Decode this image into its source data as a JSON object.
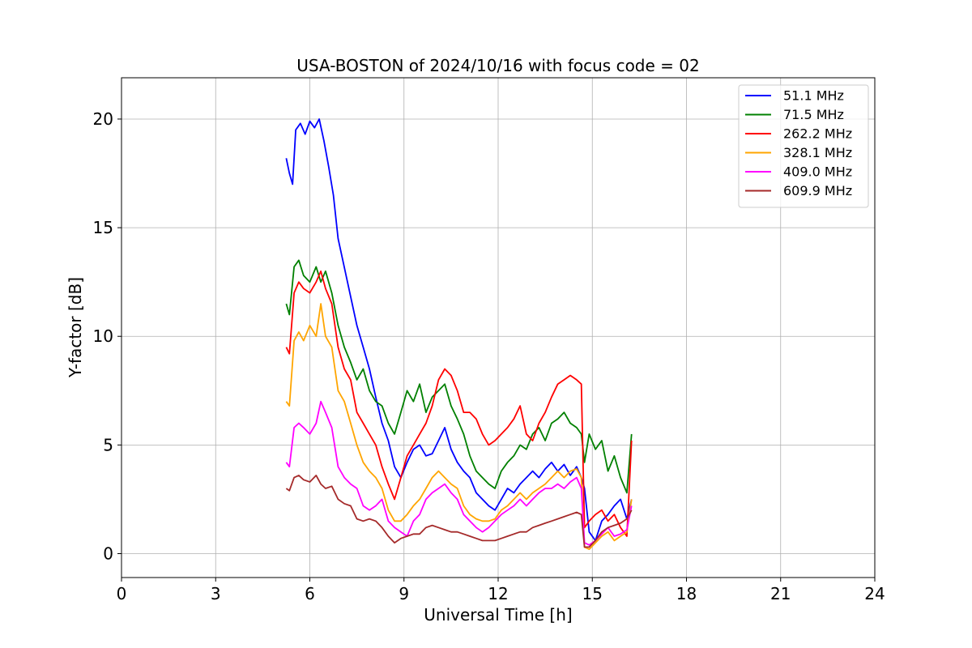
{
  "chart_data": {
    "type": "line",
    "title": "USA-BOSTON of 2024/10/16 with focus code = 02",
    "xlabel": "Universal Time [h]",
    "ylabel": "Y-factor [dB]",
    "xlim": [
      0,
      24
    ],
    "ylim": [
      -1.1,
      21.9
    ],
    "xticks": [
      0,
      3,
      6,
      9,
      12,
      15,
      18,
      21,
      24
    ],
    "yticks": [
      0,
      5,
      10,
      15,
      20
    ],
    "grid": true,
    "legend": "top-right",
    "series": [
      {
        "name": " 51.1 MHz",
        "color": "#0000ff",
        "x": [
          5.25,
          5.35,
          5.45,
          5.55,
          5.7,
          5.85,
          6.0,
          6.15,
          6.3,
          6.45,
          6.6,
          6.75,
          6.9,
          7.05,
          7.2,
          7.35,
          7.5,
          7.7,
          7.9,
          8.1,
          8.3,
          8.5,
          8.7,
          8.9,
          9.1,
          9.3,
          9.5,
          9.7,
          9.9,
          10.1,
          10.3,
          10.5,
          10.7,
          10.9,
          11.1,
          11.3,
          11.5,
          11.7,
          11.9,
          12.1,
          12.3,
          12.5,
          12.7,
          12.9,
          13.1,
          13.3,
          13.5,
          13.7,
          13.9,
          14.1,
          14.3,
          14.5,
          14.65,
          14.75,
          14.9,
          15.1,
          15.3,
          15.5,
          15.7,
          15.9,
          16.1,
          16.25
        ],
        "y": [
          18.2,
          17.5,
          17.0,
          19.5,
          19.8,
          19.3,
          19.9,
          19.6,
          20.0,
          19.0,
          17.8,
          16.5,
          14.5,
          13.5,
          12.5,
          11.5,
          10.5,
          9.5,
          8.5,
          7.2,
          6.0,
          5.2,
          4.0,
          3.5,
          4.2,
          4.8,
          5.0,
          4.5,
          4.6,
          5.2,
          5.8,
          4.8,
          4.2,
          3.8,
          3.5,
          2.8,
          2.5,
          2.2,
          2.0,
          2.5,
          3.0,
          2.8,
          3.2,
          3.5,
          3.8,
          3.5,
          3.9,
          4.2,
          3.8,
          4.1,
          3.6,
          4.0,
          3.5,
          3.0,
          1.0,
          0.6,
          1.5,
          1.8,
          2.2,
          2.5,
          1.6,
          2.5
        ]
      },
      {
        "name": " 71.5 MHz",
        "color": "#008000",
        "x": [
          5.25,
          5.35,
          5.5,
          5.65,
          5.8,
          6.0,
          6.2,
          6.35,
          6.5,
          6.7,
          6.9,
          7.1,
          7.3,
          7.5,
          7.7,
          7.9,
          8.1,
          8.3,
          8.5,
          8.7,
          8.9,
          9.1,
          9.3,
          9.5,
          9.7,
          9.9,
          10.1,
          10.3,
          10.5,
          10.7,
          10.9,
          11.1,
          11.3,
          11.5,
          11.7,
          11.9,
          12.1,
          12.3,
          12.5,
          12.7,
          12.9,
          13.1,
          13.3,
          13.5,
          13.7,
          13.9,
          14.1,
          14.3,
          14.5,
          14.65,
          14.75,
          14.9,
          15.1,
          15.3,
          15.5,
          15.7,
          15.9,
          16.1,
          16.25
        ],
        "y": [
          11.5,
          11.0,
          13.2,
          13.5,
          12.8,
          12.5,
          13.2,
          12.5,
          13.0,
          12.0,
          10.5,
          9.5,
          8.8,
          8.0,
          8.5,
          7.5,
          7.0,
          6.8,
          6.0,
          5.5,
          6.5,
          7.5,
          7.0,
          7.8,
          6.5,
          7.2,
          7.5,
          7.8,
          6.8,
          6.2,
          5.5,
          4.5,
          3.8,
          3.5,
          3.2,
          3.0,
          3.8,
          4.2,
          4.5,
          5.0,
          4.8,
          5.5,
          5.8,
          5.2,
          6.0,
          6.2,
          6.5,
          6.0,
          5.8,
          5.5,
          4.2,
          5.5,
          4.8,
          5.2,
          3.8,
          4.5,
          3.5,
          2.8,
          5.5
        ]
      },
      {
        "name": " 262.2 MHz",
        "color": "#ff0000",
        "x": [
          5.25,
          5.35,
          5.5,
          5.65,
          5.8,
          6.0,
          6.2,
          6.35,
          6.5,
          6.7,
          6.9,
          7.1,
          7.3,
          7.5,
          7.7,
          7.9,
          8.1,
          8.3,
          8.5,
          8.7,
          8.9,
          9.1,
          9.3,
          9.5,
          9.7,
          9.9,
          10.1,
          10.3,
          10.5,
          10.7,
          10.9,
          11.1,
          11.3,
          11.5,
          11.7,
          11.9,
          12.1,
          12.3,
          12.5,
          12.7,
          12.9,
          13.1,
          13.3,
          13.5,
          13.7,
          13.9,
          14.1,
          14.3,
          14.5,
          14.65,
          14.75,
          14.9,
          15.1,
          15.3,
          15.5,
          15.7,
          15.9,
          16.1,
          16.25
        ],
        "y": [
          9.5,
          9.2,
          12.0,
          12.5,
          12.2,
          12.0,
          12.5,
          13.0,
          12.2,
          11.5,
          9.5,
          8.5,
          8.0,
          6.5,
          6.0,
          5.5,
          5.0,
          4.0,
          3.2,
          2.5,
          3.5,
          4.5,
          5.0,
          5.5,
          6.0,
          6.8,
          8.0,
          8.5,
          8.2,
          7.5,
          6.5,
          6.5,
          6.2,
          5.5,
          5.0,
          5.2,
          5.5,
          5.8,
          6.2,
          6.8,
          5.5,
          5.2,
          6.0,
          6.5,
          7.2,
          7.8,
          8.0,
          8.2,
          8.0,
          7.8,
          1.2,
          1.5,
          1.8,
          2.0,
          1.5,
          1.8,
          1.2,
          0.8,
          5.2
        ]
      },
      {
        "name": " 328.1 MHz",
        "color": "#ffa500",
        "x": [
          5.25,
          5.35,
          5.5,
          5.65,
          5.8,
          6.0,
          6.2,
          6.35,
          6.5,
          6.7,
          6.9,
          7.1,
          7.3,
          7.5,
          7.7,
          7.9,
          8.1,
          8.3,
          8.5,
          8.7,
          8.9,
          9.1,
          9.3,
          9.5,
          9.7,
          9.9,
          10.1,
          10.3,
          10.5,
          10.7,
          10.9,
          11.1,
          11.3,
          11.5,
          11.7,
          11.9,
          12.1,
          12.3,
          12.5,
          12.7,
          12.9,
          13.1,
          13.3,
          13.5,
          13.7,
          13.9,
          14.1,
          14.3,
          14.5,
          14.65,
          14.75,
          14.9,
          15.1,
          15.3,
          15.5,
          15.7,
          15.9,
          16.1,
          16.25
        ],
        "y": [
          7.0,
          6.8,
          9.8,
          10.2,
          9.8,
          10.5,
          10.0,
          11.5,
          10.0,
          9.5,
          7.5,
          7.0,
          6.0,
          5.0,
          4.2,
          3.8,
          3.5,
          3.0,
          2.0,
          1.5,
          1.5,
          1.8,
          2.2,
          2.5,
          3.0,
          3.5,
          3.8,
          3.5,
          3.2,
          3.0,
          2.2,
          1.8,
          1.6,
          1.5,
          1.5,
          1.6,
          2.0,
          2.2,
          2.5,
          2.8,
          2.5,
          2.8,
          3.0,
          3.2,
          3.5,
          3.8,
          3.5,
          3.8,
          3.9,
          3.5,
          0.3,
          0.2,
          0.5,
          0.8,
          1.0,
          0.6,
          0.8,
          1.0,
          2.5
        ]
      },
      {
        "name": " 409.0 MHz",
        "color": "#ff00ff",
        "x": [
          5.25,
          5.35,
          5.5,
          5.65,
          5.8,
          6.0,
          6.2,
          6.35,
          6.5,
          6.7,
          6.9,
          7.1,
          7.3,
          7.5,
          7.7,
          7.9,
          8.1,
          8.3,
          8.5,
          8.7,
          8.9,
          9.1,
          9.3,
          9.5,
          9.7,
          9.9,
          10.1,
          10.3,
          10.5,
          10.7,
          10.9,
          11.1,
          11.3,
          11.5,
          11.7,
          11.9,
          12.1,
          12.3,
          12.5,
          12.7,
          12.9,
          13.1,
          13.3,
          13.5,
          13.7,
          13.9,
          14.1,
          14.3,
          14.5,
          14.65,
          14.75,
          14.9,
          15.1,
          15.3,
          15.5,
          15.7,
          15.9,
          16.1,
          16.25
        ],
        "y": [
          4.2,
          4.0,
          5.8,
          6.0,
          5.8,
          5.5,
          6.0,
          7.0,
          6.5,
          5.8,
          4.0,
          3.5,
          3.2,
          3.0,
          2.2,
          2.0,
          2.2,
          2.5,
          1.5,
          1.2,
          1.0,
          0.8,
          1.5,
          1.8,
          2.5,
          2.8,
          3.0,
          3.2,
          2.8,
          2.5,
          1.8,
          1.5,
          1.2,
          1.0,
          1.2,
          1.5,
          1.8,
          2.0,
          2.2,
          2.5,
          2.2,
          2.5,
          2.8,
          3.0,
          3.0,
          3.2,
          3.0,
          3.3,
          3.5,
          3.0,
          0.5,
          0.4,
          0.6,
          0.9,
          1.2,
          0.8,
          0.9,
          1.1,
          2.2
        ]
      },
      {
        "name": " 609.9 MHz",
        "color": "#a52a2a",
        "x": [
          5.25,
          5.35,
          5.5,
          5.65,
          5.8,
          6.0,
          6.2,
          6.35,
          6.5,
          6.7,
          6.9,
          7.1,
          7.3,
          7.5,
          7.7,
          7.9,
          8.1,
          8.3,
          8.5,
          8.7,
          8.9,
          9.1,
          9.3,
          9.5,
          9.7,
          9.9,
          10.1,
          10.3,
          10.5,
          10.7,
          10.9,
          11.1,
          11.3,
          11.5,
          11.7,
          11.9,
          12.1,
          12.3,
          12.5,
          12.7,
          12.9,
          13.1,
          13.3,
          13.5,
          13.7,
          13.9,
          14.1,
          14.3,
          14.5,
          14.65,
          14.75,
          14.9,
          15.1,
          15.3,
          15.5,
          15.7,
          15.9,
          16.1,
          16.25
        ],
        "y": [
          3.0,
          2.9,
          3.5,
          3.6,
          3.4,
          3.3,
          3.6,
          3.2,
          3.0,
          3.1,
          2.5,
          2.3,
          2.2,
          1.6,
          1.5,
          1.6,
          1.5,
          1.2,
          0.8,
          0.5,
          0.7,
          0.8,
          0.9,
          0.9,
          1.2,
          1.3,
          1.2,
          1.1,
          1.0,
          1.0,
          0.9,
          0.8,
          0.7,
          0.6,
          0.6,
          0.6,
          0.7,
          0.8,
          0.9,
          1.0,
          1.0,
          1.2,
          1.3,
          1.4,
          1.5,
          1.6,
          1.7,
          1.8,
          1.9,
          1.8,
          0.3,
          0.3,
          0.6,
          1.0,
          1.2,
          1.3,
          1.4,
          1.6,
          2.0
        ]
      }
    ]
  }
}
